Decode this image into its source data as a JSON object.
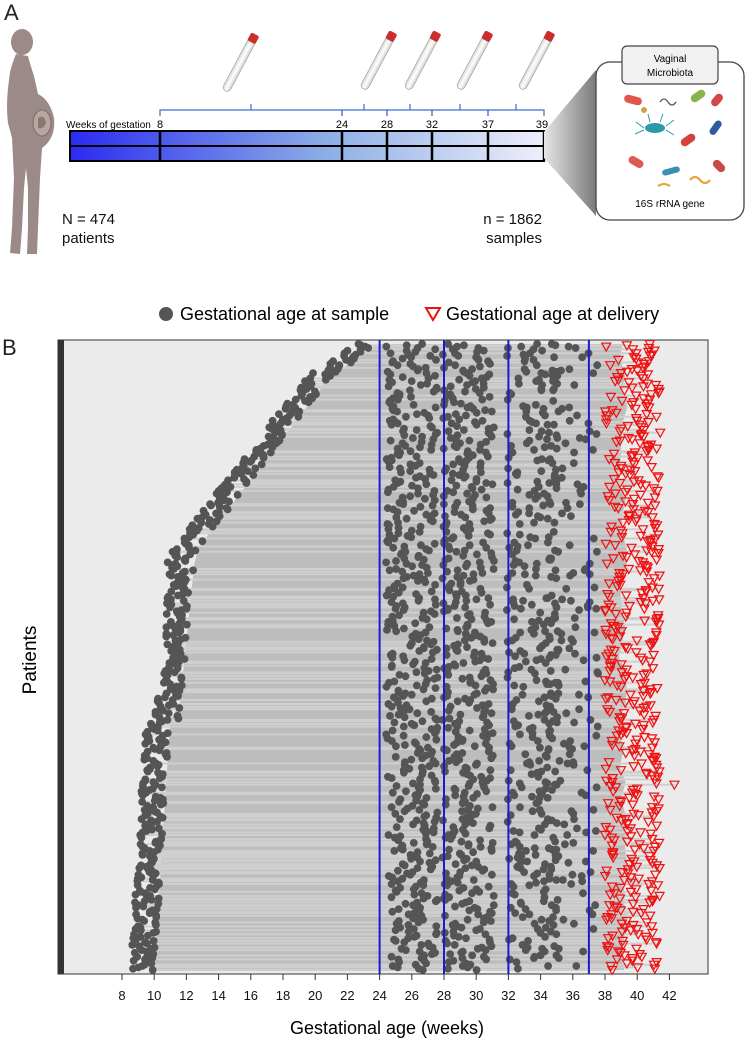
{
  "panel_a": {
    "letter": "A",
    "timeline_label": "Weeks of gestation",
    "timeline_weeks": [
      "8",
      "24",
      "28",
      "32",
      "37",
      "39"
    ],
    "patients_count": "N = 474",
    "patients_label": "patients",
    "samples_count": "n = 1862",
    "samples_label": "samples",
    "microbiota_title_line1": "Vaginal",
    "microbiota_title_line2": "Microbiota",
    "microbiota_gene": "16S rRNA gene",
    "icons": [
      "pregnant-woman-icon",
      "swab-tube-icon",
      "bacteria-icon"
    ]
  },
  "panel_b": {
    "letter": "B",
    "legend": {
      "sample_label": "Gestational age at sample",
      "delivery_label": "Gestational age at delivery"
    }
  },
  "chart_data": {
    "type": "scatter",
    "xlabel": "Gestational age (weeks)",
    "ylabel": "Patients",
    "xlim": [
      4,
      44
    ],
    "x_ticks": [
      "8",
      "10",
      "12",
      "14",
      "16",
      "18",
      "20",
      "22",
      "24",
      "26",
      "28",
      "30",
      "32",
      "34",
      "36",
      "38",
      "40",
      "42"
    ],
    "vertical_lines_weeks": [
      24,
      28,
      32,
      37
    ],
    "series": [
      {
        "name": "Gestational age at sample",
        "marker": "circle",
        "color": "#555555"
      },
      {
        "name": "Gestational age at delivery",
        "marker": "triangle-down-open",
        "color": "#ee1111"
      }
    ],
    "patients": 474,
    "samples": 1862,
    "delivery_range_weeks": [
      38,
      42
    ],
    "earliest_sample_week": 8,
    "colors": {
      "panel_bg": "#ebebeb",
      "range_band": "#bdbdbd",
      "ref_line": "#1a1ad6",
      "sample": "#555555",
      "delivery": "#ee1111"
    }
  }
}
